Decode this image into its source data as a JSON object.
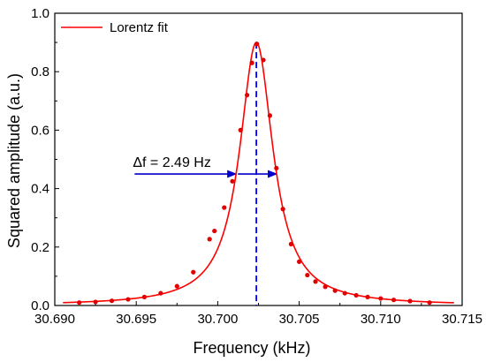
{
  "chart_data": {
    "type": "scatter",
    "xlabel": "Frequency (kHz)",
    "ylabel": "Squared amplitude (a.u.)",
    "xlim": [
      30.69,
      30.715
    ],
    "ylim": [
      0.0,
      1.0
    ],
    "x_ticks": [
      "30.690",
      "30.695",
      "30.700",
      "30.705",
      "30.710",
      "30.715"
    ],
    "y_ticks": [
      "0.0",
      "0.2",
      "0.4",
      "0.6",
      "0.8",
      "1.0"
    ],
    "legend": {
      "label": "Lorentz fit",
      "position": "top-left"
    },
    "fit": {
      "name": "Lorentz fit",
      "center": 30.70237,
      "fwhm": 0.00249,
      "peak": 0.9,
      "color": "#ff0000"
    },
    "points": {
      "color": "#e00000",
      "x": [
        30.6915,
        30.6925,
        30.6935,
        30.6945,
        30.6955,
        30.6965,
        30.6975,
        30.6985,
        30.6995,
        30.6998,
        30.7004,
        30.7009,
        30.7014,
        30.7018,
        30.7021,
        30.7024,
        30.7028,
        30.7032,
        30.7036,
        30.704,
        30.7045,
        30.705,
        30.7055,
        30.706,
        30.7066,
        30.7072,
        30.7078,
        30.7085,
        30.7092,
        30.71,
        30.7108,
        30.7118,
        30.713
      ],
      "y": [
        0.01,
        0.012,
        0.016,
        0.021,
        0.029,
        0.042,
        0.066,
        0.114,
        0.227,
        0.255,
        0.335,
        0.425,
        0.6,
        0.72,
        0.83,
        0.895,
        0.84,
        0.65,
        0.47,
        0.33,
        0.21,
        0.15,
        0.104,
        0.082,
        0.064,
        0.051,
        0.042,
        0.035,
        0.029,
        0.024,
        0.019,
        0.015,
        0.01
      ]
    },
    "center_line": {
      "x": 30.70237,
      "color": "#0000ff"
    },
    "fwhm_annotation": {
      "label": "Δf = 2.49 Hz",
      "y": 0.45,
      "x_start": 30.6949,
      "x_left": 30.70113,
      "x_right": 30.70362,
      "color": "#0000cc"
    }
  }
}
